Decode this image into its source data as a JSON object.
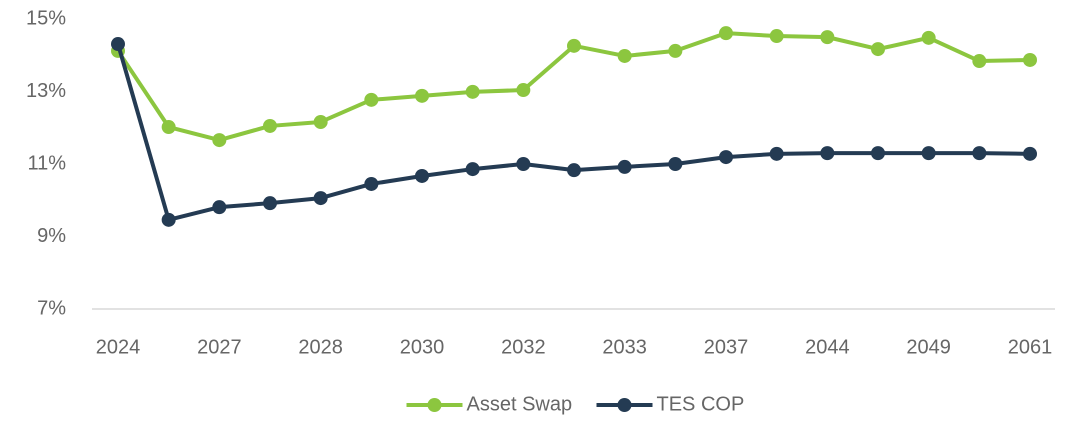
{
  "chart_data": {
    "type": "line",
    "categories": [
      "2024",
      null,
      "2027",
      null,
      "2028",
      null,
      "2030",
      null,
      "2032",
      null,
      "2033",
      null,
      "2037",
      null,
      "2044",
      null,
      "2049",
      null,
      "2061"
    ],
    "series": [
      {
        "name": "Asset Swap",
        "color": "#8cc63f",
        "values": [
          14.12,
          12.02,
          11.66,
          12.05,
          12.16,
          12.77,
          12.88,
          12.99,
          13.04,
          14.26,
          13.98,
          14.12,
          14.61,
          14.53,
          14.5,
          14.17,
          14.48,
          13.84,
          13.87
        ]
      },
      {
        "name": "TES COP",
        "color": "#243b53",
        "values": [
          14.31,
          9.46,
          9.81,
          9.92,
          10.06,
          10.45,
          10.67,
          10.86,
          11.0,
          10.83,
          10.92,
          11.0,
          11.19,
          11.28,
          11.3,
          11.3,
          11.3,
          11.3,
          11.28
        ]
      }
    ],
    "ylim": [
      7,
      15
    ],
    "yticks": [
      {
        "value": 7,
        "label": "7%"
      },
      {
        "value": 9,
        "label": "9%"
      },
      {
        "value": 11,
        "label": "11%"
      },
      {
        "value": 13,
        "label": "13%"
      },
      {
        "value": 15,
        "label": "15%"
      }
    ],
    "grid": false,
    "legend": "bottom"
  }
}
